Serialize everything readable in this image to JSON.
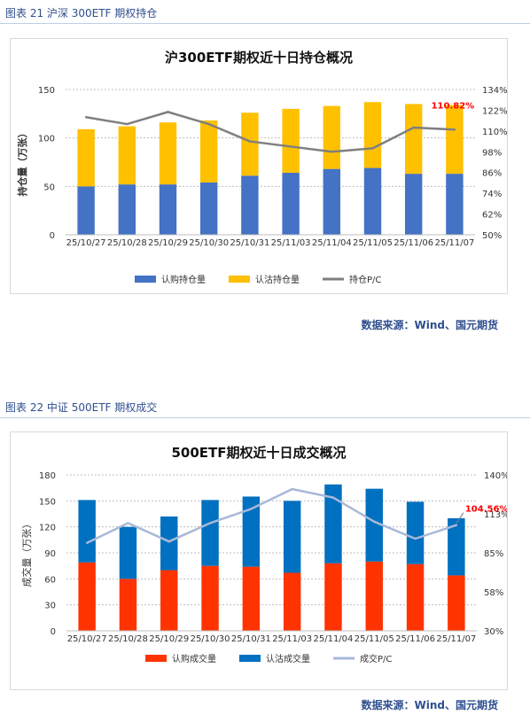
{
  "figure1": {
    "caption": "图表 21  沪深 300ETF 期权持仓",
    "source": "数据来源：Wind、国元期货"
  },
  "figure2": {
    "caption": "图表 22  中证 500ETF 期权成交",
    "source": "数据来源：Wind、国元期货"
  },
  "chart_data": [
    {
      "type": "bar",
      "stacked": true,
      "title": "沪300ETF期权近十日持仓概况",
      "ylabel": "持仓量（万张）",
      "categories": [
        "25/10/27",
        "25/10/28",
        "25/10/29",
        "25/10/30",
        "25/10/31",
        "25/11/03",
        "25/11/04",
        "25/11/05",
        "25/11/06",
        "25/11/07"
      ],
      "ylim": [
        0,
        150
      ],
      "yticks": [
        "0",
        "50",
        "100",
        "150"
      ],
      "y2lim": [
        50,
        134
      ],
      "y2ticks": [
        "50%",
        "62%",
        "74%",
        "86%",
        "98%",
        "110%",
        "122%",
        "134%"
      ],
      "series": [
        {
          "name": "认购持仓量",
          "values": [
            50,
            52,
            52,
            54,
            61,
            64,
            68,
            69,
            63,
            63
          ],
          "color": "#4472c4"
        },
        {
          "name": "认沽持仓量",
          "values": [
            59,
            60,
            64,
            64,
            65,
            66,
            65,
            68,
            72,
            71
          ],
          "color": "#ffc000"
        },
        {
          "name": "持仓P/C",
          "axis": "right",
          "type": "line",
          "values": [
            118,
            114,
            121,
            114,
            104,
            101,
            98,
            100,
            112,
            110.82
          ],
          "color": "#7f7f7f"
        }
      ],
      "annotation": {
        "text": "110.82%",
        "color": "#ff0000"
      },
      "legend": "bottom",
      "grid": true
    },
    {
      "type": "bar",
      "stacked": true,
      "title": "500ETF期权近十日成交概况",
      "ylabel": "成交量（万张）",
      "categories": [
        "25/10/27",
        "25/10/28",
        "25/10/29",
        "25/10/30",
        "25/10/31",
        "25/11/03",
        "25/11/04",
        "25/11/05",
        "25/11/06",
        "25/11/07"
      ],
      "ylim": [
        0,
        180
      ],
      "yticks": [
        "0",
        "30",
        "60",
        "90",
        "120",
        "150",
        "180"
      ],
      "y2lim": [
        30,
        140
      ],
      "y2ticks": [
        "30%",
        "58%",
        "85%",
        "113%",
        "140%"
      ],
      "series": [
        {
          "name": "认购成交量",
          "values": [
            79,
            60,
            70,
            75,
            74,
            67,
            78,
            80,
            77,
            64
          ],
          "color": "#ff3300"
        },
        {
          "name": "认沽成交量",
          "values": [
            72,
            60,
            62,
            76,
            81,
            83,
            91,
            84,
            72,
            66
          ],
          "color": "#0070c0"
        },
        {
          "name": "成交P/C",
          "axis": "right",
          "type": "line",
          "values": [
            92,
            106,
            93,
            106,
            116,
            130,
            124,
            107,
            95,
            104.56
          ],
          "color": "#a9b8d8"
        }
      ],
      "annotation": {
        "text": "104.56%",
        "color": "#ff0000"
      },
      "legend": "bottom",
      "grid": true
    }
  ]
}
